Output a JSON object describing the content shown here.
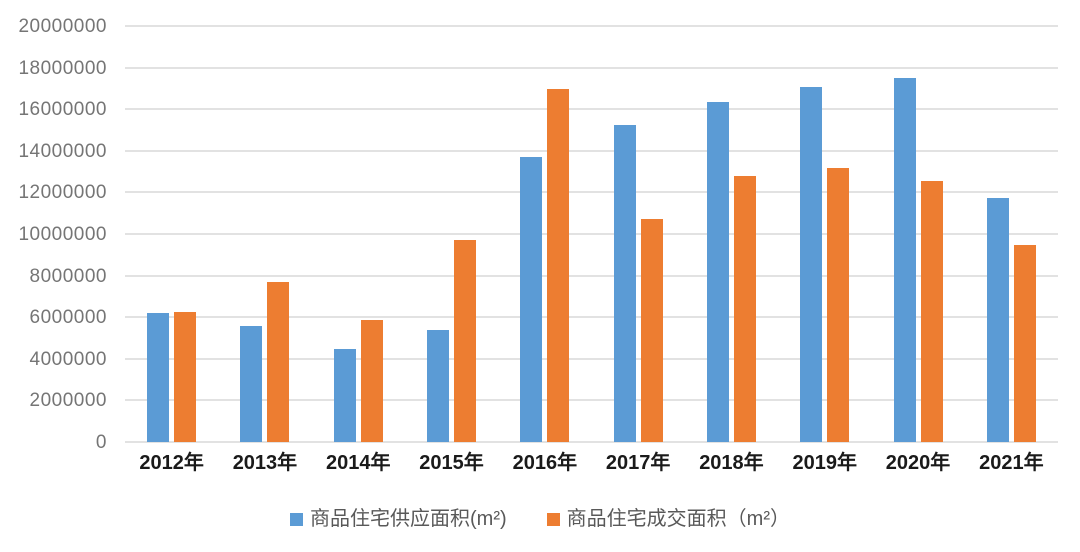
{
  "chart_data": {
    "type": "bar",
    "title": "",
    "xlabel": "",
    "ylabel": "",
    "categories": [
      "2012年",
      "2013年",
      "2014年",
      "2015年",
      "2016年",
      "2017年",
      "2018年",
      "2019年",
      "2020年",
      "2021年"
    ],
    "series": [
      {
        "name": "商品住宅供应面积(m²)",
        "color": "#5B9BD5",
        "values": [
          6200000,
          5600000,
          4450000,
          5400000,
          13700000,
          15250000,
          16350000,
          17050000,
          17500000,
          11750000
        ]
      },
      {
        "name": "商品住宅成交面积（m²）",
        "color": "#ED7D31",
        "values": [
          6250000,
          7700000,
          5850000,
          9700000,
          16950000,
          10700000,
          12800000,
          13150000,
          12550000,
          9450000
        ]
      }
    ],
    "ylim": [
      0,
      20000000
    ],
    "ytick_step": 2000000,
    "ytick_labels": [
      "0",
      "2000000",
      "4000000",
      "6000000",
      "8000000",
      "10000000",
      "12000000",
      "14000000",
      "16000000",
      "18000000",
      "20000000"
    ],
    "grid": true,
    "legend_position": "bottom"
  },
  "colors": {
    "background": "#ffffff",
    "gridline": "#e2e2e2",
    "y_tick_text": "#757575",
    "x_tick_text": "#1a1a1a",
    "legend_text": "#595959"
  }
}
